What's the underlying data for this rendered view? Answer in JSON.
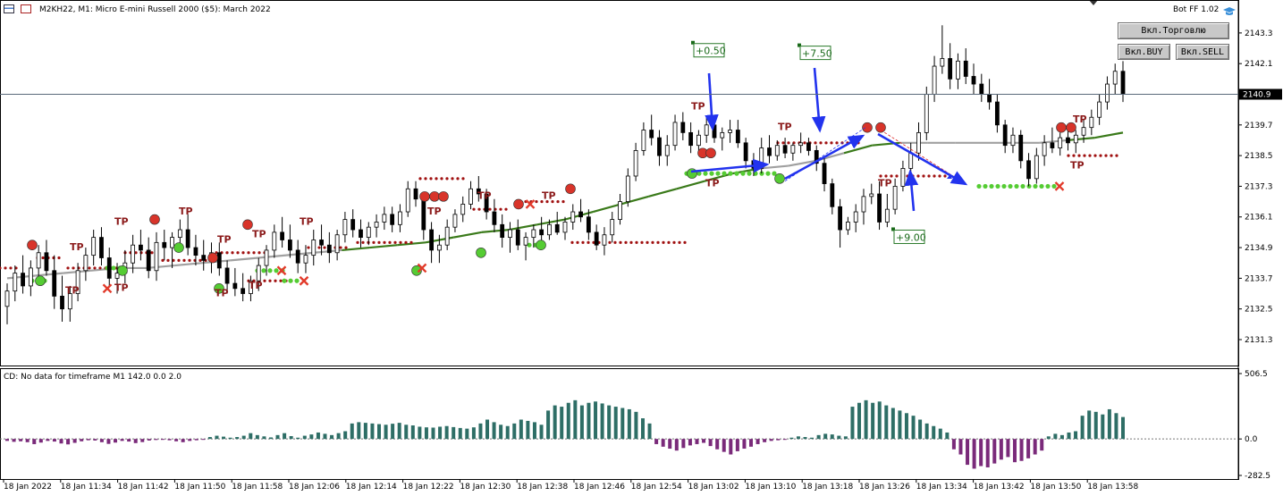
{
  "header": {
    "symbol_title": "M2KH22, M1:  Micro E-mini Russell 2000 ($5): March 2022",
    "bot_label": "Bot FF 1.02"
  },
  "buttons": {
    "trading": "Вкл.Торговлю",
    "buy": "Вкл.BUY",
    "sell": "Вкл.SELL"
  },
  "current_price": "2140.9",
  "price_axis": [
    "2143.3",
    "2142.1",
    "2139.7",
    "2138.5",
    "2137.3",
    "2136.1",
    "2134.9",
    "2133.7",
    "2132.5",
    "2131.3"
  ],
  "indicator": {
    "title": "CD: No data for timeframe M1 142.0 0.0 2.0",
    "axis": [
      "506.5",
      "0.0",
      "-282.5"
    ]
  },
  "time_axis": [
    "18 Jan 2022",
    "18 Jan 11:34",
    "18 Jan 11:42",
    "18 Jan 11:50",
    "18 Jan 11:58",
    "18 Jan 12:06",
    "18 Jan 12:14",
    "18 Jan 12:22",
    "18 Jan 12:30",
    "18 Jan 12:38",
    "18 Jan 12:46",
    "18 Jan 12:54",
    "18 Jan 13:02",
    "18 Jan 13:10",
    "18 Jan 13:18",
    "18 Jan 13:26",
    "18 Jan 13:34",
    "18 Jan 13:42",
    "18 Jan 13:50",
    "18 Jan 13:58"
  ],
  "profit_labels": [
    "+0.50",
    "+7.50",
    "+9.00"
  ],
  "tp_label": "TP",
  "colors": {
    "bull_body": "#ffffff",
    "bear_body": "#000000",
    "ma_green": "#3a7a1a",
    "ma_gray": "#a0a0a0",
    "dots_red": "#a01010",
    "dots_green": "#55cc33",
    "arrow_blue": "#2233ee",
    "hist_pos": "#2e6e66",
    "hist_neg": "#7a2a7a",
    "tp_text": "#8b1a1a"
  },
  "chart_data": {
    "type": "candlestick",
    "timeframe": "M1",
    "ylim": [
      2130.6,
      2144.1
    ],
    "candles": [
      [
        2132.6,
        2133.5,
        2131.9,
        2133.2
      ],
      [
        2133.2,
        2134.2,
        2132.8,
        2133.9
      ],
      [
        2133.9,
        2134.6,
        2133.1,
        2133.4
      ],
      [
        2133.4,
        2134.4,
        2133.0,
        2134.1
      ],
      [
        2134.1,
        2135.0,
        2133.6,
        2134.7
      ],
      [
        2134.7,
        2135.2,
        2133.8,
        2134.0
      ],
      [
        2134.0,
        2134.6,
        2132.5,
        2133.0
      ],
      [
        2133.0,
        2133.8,
        2132.0,
        2132.5
      ],
      [
        2132.5,
        2133.4,
        2132.0,
        2133.1
      ],
      [
        2133.1,
        2134.3,
        2132.8,
        2134.0
      ],
      [
        2134.0,
        2134.9,
        2133.6,
        2134.6
      ],
      [
        2134.6,
        2135.6,
        2134.2,
        2135.3
      ],
      [
        2135.3,
        2135.7,
        2134.2,
        2134.5
      ],
      [
        2134.5,
        2134.9,
        2133.4,
        2133.7
      ],
      [
        2133.7,
        2134.3,
        2133.1,
        2133.9
      ],
      [
        2133.9,
        2134.8,
        2133.5,
        2134.3
      ],
      [
        2134.3,
        2135.4,
        2133.9,
        2135.0
      ],
      [
        2135.0,
        2135.6,
        2134.4,
        2134.8
      ],
      [
        2134.8,
        2135.3,
        2133.7,
        2134.0
      ],
      [
        2134.0,
        2135.5,
        2133.6,
        2135.1
      ],
      [
        2135.1,
        2135.6,
        2134.4,
        2134.9
      ],
      [
        2134.9,
        2135.5,
        2134.1,
        2135.3
      ],
      [
        2135.3,
        2136.0,
        2135.0,
        2135.6
      ],
      [
        2135.6,
        2136.2,
        2134.6,
        2134.9
      ],
      [
        2134.9,
        2135.4,
        2134.2,
        2134.6
      ],
      [
        2134.6,
        2135.2,
        2134.0,
        2134.4
      ],
      [
        2134.4,
        2135.1,
        2133.9,
        2134.7
      ],
      [
        2134.7,
        2135.1,
        2133.8,
        2134.1
      ],
      [
        2134.1,
        2134.4,
        2133.1,
        2133.5
      ],
      [
        2133.5,
        2134.1,
        2133.0,
        2133.3
      ],
      [
        2133.3,
        2133.9,
        2132.8,
        2133.1
      ],
      [
        2133.1,
        2133.8,
        2132.8,
        2133.6
      ],
      [
        2133.6,
        2134.5,
        2133.2,
        2134.2
      ],
      [
        2134.2,
        2135.0,
        2133.8,
        2134.8
      ],
      [
        2134.8,
        2135.8,
        2134.5,
        2135.5
      ],
      [
        2135.5,
        2136.1,
        2134.9,
        2135.2
      ],
      [
        2135.2,
        2135.8,
        2134.5,
        2134.8
      ],
      [
        2134.8,
        2135.2,
        2133.9,
        2134.3
      ],
      [
        2134.3,
        2135.0,
        2133.9,
        2134.6
      ],
      [
        2134.6,
        2135.6,
        2134.2,
        2135.2
      ],
      [
        2135.2,
        2135.8,
        2134.6,
        2135.0
      ],
      [
        2135.0,
        2135.5,
        2134.3,
        2134.7
      ],
      [
        2134.7,
        2135.6,
        2134.4,
        2135.4
      ],
      [
        2135.4,
        2136.3,
        2135.1,
        2136.0
      ],
      [
        2136.0,
        2136.4,
        2135.3,
        2135.6
      ],
      [
        2135.6,
        2136.0,
        2134.9,
        2135.3
      ],
      [
        2135.3,
        2135.9,
        2135.0,
        2135.7
      ],
      [
        2135.7,
        2136.2,
        2135.3,
        2135.9
      ],
      [
        2135.9,
        2136.5,
        2135.6,
        2136.2
      ],
      [
        2136.2,
        2136.5,
        2135.5,
        2135.8
      ],
      [
        2135.8,
        2136.6,
        2135.5,
        2136.3
      ],
      [
        2136.3,
        2137.5,
        2136.1,
        2137.2
      ],
      [
        2137.2,
        2137.5,
        2136.5,
        2136.8
      ],
      [
        2136.8,
        2137.0,
        2135.2,
        2135.6
      ],
      [
        2135.6,
        2135.9,
        2134.3,
        2134.8
      ],
      [
        2134.8,
        2135.4,
        2134.3,
        2135.0
      ],
      [
        2135.0,
        2136.0,
        2134.8,
        2135.7
      ],
      [
        2135.7,
        2136.4,
        2135.5,
        2136.2
      ],
      [
        2136.2,
        2136.9,
        2135.9,
        2136.6
      ],
      [
        2136.6,
        2137.5,
        2136.4,
        2137.2
      ],
      [
        2137.2,
        2137.7,
        2136.7,
        2137.0
      ],
      [
        2137.0,
        2137.2,
        2136.0,
        2136.3
      ],
      [
        2136.3,
        2136.8,
        2135.5,
        2135.8
      ],
      [
        2135.8,
        2136.2,
        2134.9,
        2135.3
      ],
      [
        2135.3,
        2135.9,
        2134.7,
        2135.6
      ],
      [
        2135.6,
        2136.0,
        2134.8,
        2135.0
      ],
      [
        2135.0,
        2135.5,
        2134.4,
        2135.3
      ],
      [
        2135.3,
        2135.8,
        2134.9,
        2135.6
      ],
      [
        2135.6,
        2136.1,
        2135.2,
        2135.4
      ],
      [
        2135.4,
        2136.0,
        2135.2,
        2135.8
      ],
      [
        2135.8,
        2136.3,
        2135.4,
        2135.5
      ],
      [
        2135.5,
        2136.1,
        2135.2,
        2135.9
      ],
      [
        2135.9,
        2136.6,
        2135.6,
        2136.3
      ],
      [
        2136.3,
        2136.8,
        2135.9,
        2136.1
      ],
      [
        2136.1,
        2136.4,
        2135.2,
        2135.5
      ],
      [
        2135.5,
        2135.8,
        2134.8,
        2135.0
      ],
      [
        2135.0,
        2135.7,
        2134.6,
        2135.4
      ],
      [
        2135.4,
        2136.3,
        2135.1,
        2136.0
      ],
      [
        2136.0,
        2137.0,
        2135.8,
        2136.7
      ],
      [
        2136.7,
        2138.0,
        2136.5,
        2137.7
      ],
      [
        2137.7,
        2139.0,
        2137.5,
        2138.7
      ],
      [
        2138.7,
        2139.8,
        2138.5,
        2139.5
      ],
      [
        2139.5,
        2140.1,
        2138.9,
        2139.2
      ],
      [
        2139.2,
        2139.5,
        2138.1,
        2138.5
      ],
      [
        2138.5,
        2139.3,
        2138.1,
        2138.9
      ],
      [
        2138.9,
        2140.1,
        2138.7,
        2139.8
      ],
      [
        2139.8,
        2140.2,
        2139.1,
        2139.4
      ],
      [
        2139.4,
        2139.8,
        2138.6,
        2138.9
      ],
      [
        2138.9,
        2139.5,
        2138.6,
        2139.3
      ],
      [
        2139.3,
        2140.0,
        2139.0,
        2139.7
      ],
      [
        2139.7,
        2140.0,
        2139.0,
        2139.2
      ],
      [
        2139.2,
        2139.6,
        2138.7,
        2139.4
      ],
      [
        2139.4,
        2139.9,
        2139.0,
        2139.5
      ],
      [
        2139.5,
        2139.9,
        2138.8,
        2139.0
      ],
      [
        2139.0,
        2139.2,
        2138.0,
        2138.3
      ],
      [
        2138.3,
        2138.6,
        2137.7,
        2138.0
      ],
      [
        2138.0,
        2139.2,
        2137.8,
        2138.8
      ],
      [
        2138.8,
        2139.3,
        2138.2,
        2138.5
      ],
      [
        2138.5,
        2139.1,
        2138.3,
        2138.9
      ],
      [
        2138.9,
        2139.2,
        2138.4,
        2138.6
      ],
      [
        2138.6,
        2139.0,
        2138.3,
        2138.9
      ],
      [
        2138.9,
        2139.4,
        2138.6,
        2139.0
      ],
      [
        2139.0,
        2139.2,
        2138.5,
        2138.7
      ],
      [
        2138.7,
        2138.9,
        2137.9,
        2138.2
      ],
      [
        2138.2,
        2138.4,
        2137.1,
        2137.4
      ],
      [
        2137.4,
        2137.6,
        2136.2,
        2136.5
      ],
      [
        2136.5,
        2136.8,
        2134.9,
        2135.6
      ],
      [
        2135.6,
        2136.1,
        2135.4,
        2135.9
      ],
      [
        2135.9,
        2136.6,
        2135.5,
        2136.3
      ],
      [
        2136.3,
        2137.2,
        2135.8,
        2136.9
      ],
      [
        2136.9,
        2137.4,
        2136.6,
        2137.0
      ],
      [
        2137.0,
        2137.5,
        2135.6,
        2135.9
      ],
      [
        2135.9,
        2137.0,
        2135.7,
        2136.4
      ],
      [
        2136.4,
        2137.6,
        2136.2,
        2137.3
      ],
      [
        2137.3,
        2138.3,
        2137.1,
        2138.0
      ],
      [
        2138.0,
        2139.0,
        2137.7,
        2138.6
      ],
      [
        2138.6,
        2139.8,
        2138.3,
        2139.4
      ],
      [
        2139.4,
        2141.2,
        2139.1,
        2140.9
      ],
      [
        2140.9,
        2142.4,
        2140.6,
        2142.0
      ],
      [
        2142.0,
        2143.6,
        2141.7,
        2142.3
      ],
      [
        2142.3,
        2142.9,
        2141.1,
        2141.5
      ],
      [
        2141.5,
        2142.5,
        2141.1,
        2142.2
      ],
      [
        2142.2,
        2142.7,
        2141.3,
        2141.6
      ],
      [
        2141.6,
        2142.1,
        2140.9,
        2141.3
      ],
      [
        2141.3,
        2141.7,
        2140.6,
        2140.9
      ],
      [
        2140.9,
        2141.5,
        2140.3,
        2140.6
      ],
      [
        2140.6,
        2140.9,
        2139.4,
        2139.7
      ],
      [
        2139.7,
        2139.9,
        2138.6,
        2138.9
      ],
      [
        2138.9,
        2139.6,
        2138.6,
        2139.3
      ],
      [
        2139.3,
        2139.5,
        2138.0,
        2138.3
      ],
      [
        2138.3,
        2138.6,
        2137.3,
        2137.6
      ],
      [
        2137.6,
        2138.8,
        2137.4,
        2138.5
      ],
      [
        2138.5,
        2139.3,
        2138.1,
        2139.0
      ],
      [
        2139.0,
        2139.6,
        2138.6,
        2138.8
      ],
      [
        2138.8,
        2139.4,
        2138.5,
        2139.2
      ],
      [
        2139.2,
        2139.7,
        2138.7,
        2139.0
      ],
      [
        2139.0,
        2139.5,
        2138.6,
        2139.3
      ],
      [
        2139.3,
        2139.9,
        2139.0,
        2139.6
      ],
      [
        2139.6,
        2140.3,
        2139.3,
        2140.0
      ],
      [
        2140.0,
        2140.9,
        2139.7,
        2140.6
      ],
      [
        2140.6,
        2141.6,
        2140.3,
        2141.3
      ],
      [
        2141.3,
        2142.1,
        2140.9,
        2141.8
      ],
      [
        2141.8,
        2142.2,
        2140.6,
        2140.9
      ]
    ],
    "ma_series": [
      2133.7,
      2133.8,
      2133.9,
      2134.0,
      2134.1,
      2134.1,
      2134.2,
      2134.3,
      2134.4,
      2134.5,
      2134.6,
      2134.7,
      2134.8,
      2134.9,
      2135.0,
      2135.1,
      2135.3,
      2135.5,
      2135.6,
      2135.8,
      2136.0,
      2136.3,
      2136.6,
      2136.9,
      2137.2,
      2137.5,
      2137.8,
      2138.0,
      2138.1,
      2138.3,
      2138.6,
      2138.9,
      2139.0,
      2139.0,
      2139.0,
      2139.0,
      2139.0,
      2139.0,
      2139.1,
      2139.2,
      2139.4
    ],
    "histogram": [
      -15,
      -22,
      -18,
      -25,
      -40,
      -28,
      -15,
      -20,
      -35,
      -42,
      -30,
      -18,
      -10,
      -12,
      -25,
      -38,
      -28,
      -15,
      -20,
      -32,
      -24,
      -12,
      -8,
      -5,
      -10,
      -18,
      -25,
      -15,
      -10,
      -5,
      15,
      25,
      18,
      10,
      15,
      25,
      45,
      30,
      20,
      12,
      30,
      45,
      22,
      10,
      25,
      35,
      50,
      40,
      30,
      45,
      60,
      120,
      130,
      125,
      120,
      115,
      110,
      118,
      125,
      110,
      105,
      95,
      90,
      88,
      95,
      100,
      92,
      85,
      80,
      90,
      120,
      150,
      130,
      110,
      100,
      120,
      150,
      140,
      130,
      110,
      220,
      260,
      250,
      280,
      300,
      260,
      280,
      290,
      275,
      260,
      250,
      240,
      230,
      210,
      160,
      120,
      -40,
      -60,
      -75,
      -90,
      -70,
      -50,
      -40,
      -30,
      -55,
      -80,
      -100,
      -120,
      -95,
      -75,
      -60,
      -40,
      -25,
      -15,
      -10,
      -5,
      10,
      20,
      15,
      10,
      30,
      40,
      35,
      25,
      20,
      250,
      280,
      300,
      280,
      290,
      260,
      240,
      220,
      200,
      180,
      150,
      120,
      100,
      80,
      50,
      -80,
      -120,
      -200,
      -230,
      -210,
      -220,
      -190,
      -160,
      -140,
      -180,
      -170,
      -150,
      -120,
      -90,
      20,
      40,
      30,
      50,
      60,
      180,
      220,
      210,
      190,
      230,
      200,
      170
    ]
  }
}
